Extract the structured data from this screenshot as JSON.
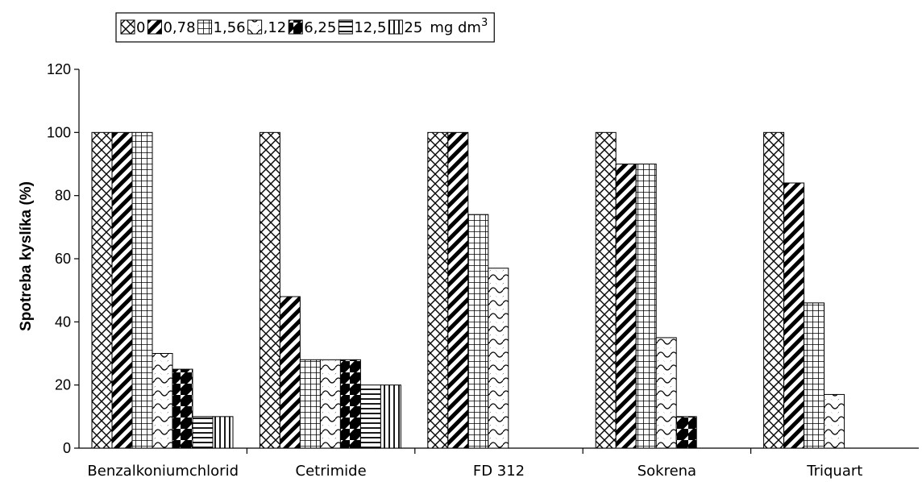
{
  "chart_data": {
    "type": "bar",
    "ylabel": "Spotreba kyslíka (%)",
    "xlabel": "",
    "ylim": [
      0,
      120
    ],
    "yticks": [
      0,
      20,
      40,
      60,
      80,
      100,
      120
    ],
    "grid": false,
    "legend_position": "top-left",
    "legend_unit": "mg dm-3",
    "categories": [
      "Benzalkoniumchlorid",
      "Cetrimide",
      "FD 312",
      "Sokrena",
      "Triquart"
    ],
    "series": [
      {
        "name": "0",
        "pattern": "crosshatch",
        "values": [
          100,
          100,
          100,
          100,
          100
        ]
      },
      {
        "name": "0,78",
        "pattern": "diag-thick",
        "values": [
          100,
          48,
          100,
          90,
          84
        ]
      },
      {
        "name": "1,56",
        "pattern": "grid",
        "values": [
          100,
          28,
          74,
          90,
          46
        ]
      },
      {
        "name": ",12",
        "pattern": "scallop",
        "values": [
          30,
          28,
          57,
          35,
          17
        ]
      },
      {
        "name": "6,25",
        "pattern": "diag-bold",
        "values": [
          25,
          28,
          null,
          10,
          null
        ]
      },
      {
        "name": "12,5",
        "pattern": "horizontal",
        "values": [
          10,
          20,
          null,
          null,
          null
        ]
      },
      {
        "name": "25",
        "pattern": "vertical",
        "values": [
          10,
          20,
          null,
          null,
          null
        ]
      }
    ]
  }
}
